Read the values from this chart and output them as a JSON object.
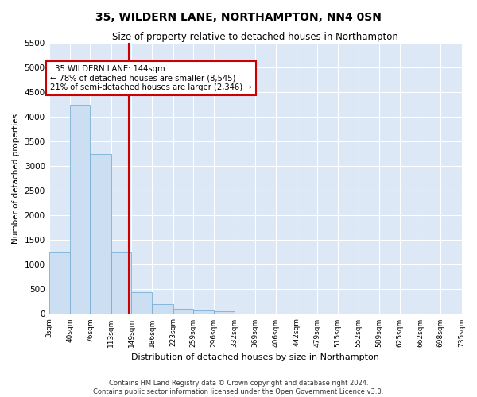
{
  "title": "35, WILDERN LANE, NORTHAMPTON, NN4 0SN",
  "subtitle": "Size of property relative to detached houses in Northampton",
  "xlabel": "Distribution of detached houses by size in Northampton",
  "ylabel": "Number of detached properties",
  "bar_color": "#ccdff2",
  "bar_edge_color": "#7aafd4",
  "background_color": "#dce8f5",
  "grid_color": "#ffffff",
  "annotation_line_color": "#cc0000",
  "annotation_box_color": "#cc0000",
  "annotation_text": "  35 WILDERN LANE: 144sqm\n← 78% of detached houses are smaller (8,545)\n21% of semi-detached houses are larger (2,346) →",
  "property_size": 144,
  "bin_edges": [
    3,
    40,
    76,
    113,
    149,
    186,
    223,
    259,
    296,
    332,
    369,
    406,
    442,
    479,
    515,
    552,
    589,
    625,
    662,
    698,
    735
  ],
  "bar_heights": [
    1250,
    4250,
    3250,
    1250,
    450,
    200,
    100,
    75,
    50,
    10,
    5,
    3,
    2,
    1,
    1,
    0,
    0,
    0,
    0,
    0
  ],
  "ylim": [
    0,
    5500
  ],
  "yticks": [
    0,
    500,
    1000,
    1500,
    2000,
    2500,
    3000,
    3500,
    4000,
    4500,
    5000,
    5500
  ],
  "footer": "Contains HM Land Registry data © Crown copyright and database right 2024.\nContains public sector information licensed under the Open Government Licence v3.0.",
  "figsize": [
    6.0,
    5.0
  ],
  "dpi": 100
}
